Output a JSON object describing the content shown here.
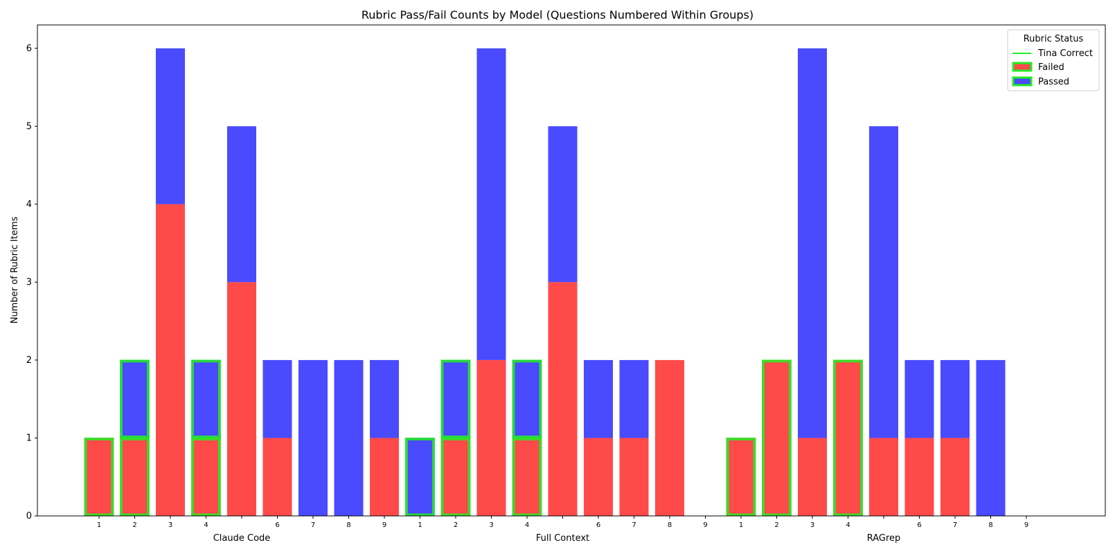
{
  "chart_data": {
    "type": "bar",
    "title": "Rubric Pass/Fail Counts by Model (Questions Numbered Within Groups)",
    "xlabel": "",
    "ylabel": "Number of Rubric Items",
    "ylim": [
      0,
      6.3
    ],
    "yticks": [
      "0",
      "1",
      "2",
      "3",
      "4",
      "5",
      "6"
    ],
    "stacked": true,
    "legend": {
      "title": "Rubric Status",
      "placement": "top-right",
      "entries": [
        "Tina Correct",
        "Failed",
        "Passed"
      ]
    },
    "colors": {
      "failed": "#ff4a4a",
      "passed": "#4a4aff",
      "tina_correct": "#22ee22"
    },
    "groups": [
      {
        "name": "Claude Code",
        "questions": [
          {
            "label": "1",
            "failed": 1,
            "passed": 0,
            "tina_correct": true
          },
          {
            "label": "2",
            "failed": 1,
            "passed": 1,
            "tina_correct": true
          },
          {
            "label": "3",
            "failed": 4,
            "passed": 2,
            "tina_correct": false
          },
          {
            "label": "4",
            "failed": 1,
            "passed": 1,
            "tina_correct": true
          },
          {
            "label": "",
            "failed": 3,
            "passed": 2,
            "tina_correct": false
          },
          {
            "label": "6",
            "failed": 1,
            "passed": 1,
            "tina_correct": false
          },
          {
            "label": "7",
            "failed": 0,
            "passed": 2,
            "tina_correct": false
          },
          {
            "label": "8",
            "failed": 0,
            "passed": 2,
            "tina_correct": false
          },
          {
            "label": "9",
            "failed": 1,
            "passed": 1,
            "tina_correct": false
          }
        ]
      },
      {
        "name": "Full Context",
        "questions": [
          {
            "label": "1",
            "failed": 0,
            "passed": 1,
            "tina_correct": true
          },
          {
            "label": "2",
            "failed": 1,
            "passed": 1,
            "tina_correct": true
          },
          {
            "label": "3",
            "failed": 2,
            "passed": 4,
            "tina_correct": false
          },
          {
            "label": "4",
            "failed": 1,
            "passed": 1,
            "tina_correct": true
          },
          {
            "label": "",
            "failed": 3,
            "passed": 2,
            "tina_correct": false
          },
          {
            "label": "6",
            "failed": 1,
            "passed": 1,
            "tina_correct": false
          },
          {
            "label": "7",
            "failed": 1,
            "passed": 1,
            "tina_correct": false
          },
          {
            "label": "8",
            "failed": 2,
            "passed": 0,
            "tina_correct": false
          },
          {
            "label": "9",
            "failed": 0,
            "passed": 0,
            "tina_correct": false
          }
        ]
      },
      {
        "name": "RAGrep",
        "questions": [
          {
            "label": "1",
            "failed": 1,
            "passed": 0,
            "tina_correct": true
          },
          {
            "label": "2",
            "failed": 2,
            "passed": 0,
            "tina_correct": true
          },
          {
            "label": "3",
            "failed": 1,
            "passed": 5,
            "tina_correct": false
          },
          {
            "label": "4",
            "failed": 2,
            "passed": 0,
            "tina_correct": true
          },
          {
            "label": "",
            "failed": 1,
            "passed": 4,
            "tina_correct": false
          },
          {
            "label": "6",
            "failed": 1,
            "passed": 1,
            "tina_correct": false
          },
          {
            "label": "7",
            "failed": 1,
            "passed": 1,
            "tina_correct": false
          },
          {
            "label": "8",
            "failed": 0,
            "passed": 2,
            "tina_correct": false
          },
          {
            "label": "9",
            "failed": 0,
            "passed": 0,
            "tina_correct": false
          }
        ]
      }
    ]
  }
}
